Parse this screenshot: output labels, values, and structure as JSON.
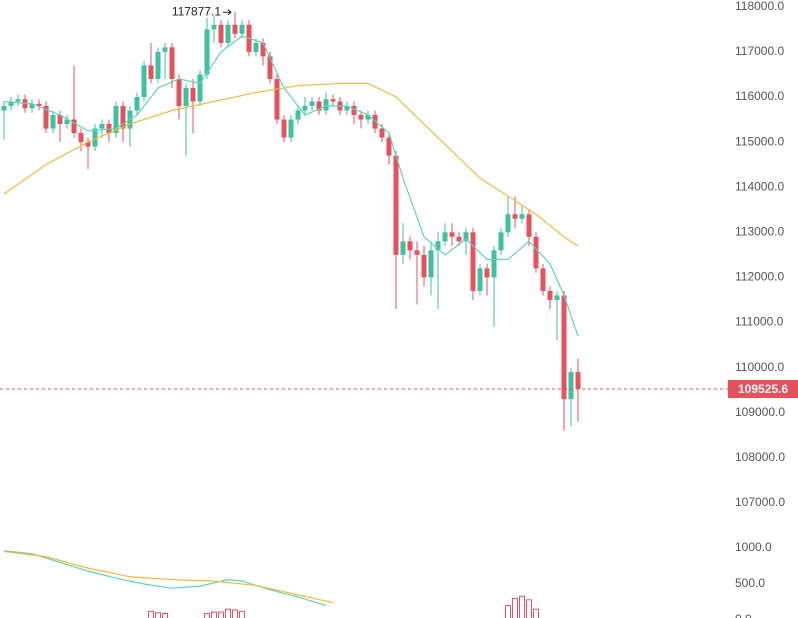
{
  "chart_data": [
    {
      "type": "candlestick",
      "up_color": "#3cc2a0",
      "down_color": "#e8505b",
      "open": [
        115700,
        115800,
        115900,
        115950,
        115750,
        115850,
        115800,
        115300,
        115600,
        115400,
        115500,
        115200,
        115000,
        114900,
        115300,
        115400,
        115200,
        115800,
        115300,
        115700,
        116000,
        116700,
        116400,
        117000,
        117100,
        116400,
        115800,
        116200,
        115900,
        116500,
        117500,
        117600,
        117200,
        117600,
        117400,
        117600,
        117000,
        117200,
        116900,
        116400,
        115500,
        115100,
        115500,
        115700,
        115800,
        115900,
        115700,
        115950,
        115900,
        115700,
        115800,
        115600,
        115500,
        115600,
        115300,
        115100,
        114700,
        112500,
        112800,
        112600,
        112500,
        112000,
        112600,
        112800,
        113000,
        112900,
        112800,
        113000,
        111700,
        112200,
        112000,
        112600,
        113000,
        113400,
        113300,
        113400,
        112900,
        112200,
        111700,
        111500,
        111600,
        109300,
        109900
      ],
      "high": [
        115900,
        116000,
        116050,
        116050,
        115950,
        115950,
        115900,
        115700,
        115700,
        115600,
        116700,
        115300,
        115100,
        115400,
        115500,
        115500,
        115900,
        115900,
        115800,
        116100,
        116800,
        117200,
        117100,
        117200,
        117200,
        116500,
        116300,
        116400,
        116600,
        117750,
        117800,
        117700,
        117700,
        117877.1,
        117700,
        117700,
        117300,
        117300,
        117000,
        116500,
        115600,
        115600,
        115800,
        116000,
        116000,
        116000,
        116100,
        116050,
        116000,
        115900,
        115900,
        115700,
        115700,
        115700,
        115400,
        115200,
        114800,
        113200,
        112900,
        112800,
        112700,
        112800,
        113000,
        113200,
        113200,
        113000,
        113100,
        113100,
        112300,
        112300,
        112700,
        113100,
        113800,
        113800,
        113600,
        113500,
        113000,
        112300,
        111800,
        111700,
        111700,
        110000,
        110200
      ],
      "low": [
        115050,
        115700,
        115800,
        115650,
        115650,
        115700,
        115200,
        115200,
        115000,
        115300,
        115100,
        114800,
        114400,
        114800,
        115100,
        115000,
        115100,
        115000,
        114900,
        115600,
        115900,
        116300,
        116300,
        116400,
        116200,
        115500,
        114700,
        115200,
        115800,
        116400,
        117200,
        117100,
        117100,
        117300,
        117300,
        116900,
        116900,
        116700,
        116300,
        115400,
        115000,
        115000,
        115400,
        115600,
        115700,
        115600,
        115600,
        115800,
        115600,
        115600,
        115400,
        115300,
        115400,
        115200,
        115000,
        114500,
        111300,
        112300,
        112400,
        111400,
        111800,
        111600,
        111300,
        112700,
        112700,
        112700,
        112500,
        111500,
        111600,
        111600,
        110900,
        112500,
        112900,
        113100,
        113200,
        112700,
        112100,
        111600,
        111300,
        110600,
        108600,
        108700,
        108800
      ],
      "close": [
        115800,
        115900,
        115950,
        115750,
        115850,
        115800,
        115300,
        115600,
        115400,
        115500,
        115200,
        115000,
        114900,
        115300,
        115400,
        115200,
        115800,
        115300,
        115700,
        116000,
        116700,
        116400,
        117000,
        117100,
        116400,
        115800,
        116200,
        115900,
        116500,
        117500,
        117600,
        117200,
        117600,
        117400,
        117600,
        117000,
        117200,
        116900,
        116400,
        115500,
        115100,
        115500,
        115700,
        115800,
        115900,
        115700,
        115950,
        115900,
        115700,
        115800,
        115600,
        115500,
        115600,
        115300,
        115100,
        114700,
        112500,
        112800,
        112600,
        112500,
        112000,
        112600,
        112800,
        113000,
        112900,
        112800,
        113000,
        111700,
        112200,
        112000,
        112600,
        113000,
        113400,
        113300,
        113400,
        112900,
        112200,
        111700,
        111500,
        111600,
        109300,
        109900,
        109525.6
      ],
      "lines": [
        {
          "color": "#5fd3bc",
          "x": [
            0,
            4,
            8,
            12,
            16,
            19,
            22,
            25,
            28,
            31,
            34,
            37,
            40,
            43,
            46,
            49,
            52,
            55,
            57,
            60,
            63,
            66,
            69,
            72,
            75,
            78,
            80,
            82
          ],
          "values": [
            115900,
            115850,
            115600,
            115250,
            115300,
            115600,
            116200,
            116400,
            116300,
            117000,
            117350,
            117200,
            116200,
            115600,
            115800,
            115800,
            115600,
            115200,
            114200,
            112900,
            112500,
            112850,
            112400,
            112400,
            112800,
            112300,
            111600,
            110700
          ]
        },
        {
          "color": "#f5b93c",
          "x": [
            0,
            6,
            12,
            18,
            24,
            30,
            36,
            42,
            48,
            52,
            56,
            60,
            64,
            68,
            72,
            76,
            80,
            82
          ],
          "values": [
            113850,
            114500,
            115000,
            115400,
            115700,
            115900,
            116100,
            116250,
            116300,
            116300,
            116000,
            115400,
            114800,
            114200,
            113800,
            113400,
            112900,
            112700
          ]
        }
      ],
      "ylim": [
        106400,
        118150
      ],
      "yticks": [
        {
          "value": 118000,
          "label": "118000.0"
        },
        {
          "value": 117000,
          "label": "117000.0"
        },
        {
          "value": 116000,
          "label": "116000.0"
        },
        {
          "value": 115000,
          "label": "115000.0"
        },
        {
          "value": 114000,
          "label": "114000.0"
        },
        {
          "value": 113000,
          "label": "113000.0"
        },
        {
          "value": 112000,
          "label": "112000.0"
        },
        {
          "value": 111000,
          "label": "111000.0"
        },
        {
          "value": 110000,
          "label": "110000.0"
        },
        {
          "value": 109000,
          "label": "109000.0"
        },
        {
          "value": 108000,
          "label": "108000.0"
        },
        {
          "value": 107000,
          "label": "107000.0"
        }
      ]
    },
    {
      "type": "bar",
      "color": "#e8505b",
      "x": [
        21,
        22,
        23,
        29,
        30,
        31,
        32,
        33,
        34,
        72,
        73,
        74,
        75,
        76
      ],
      "values": [
        120,
        100,
        90,
        90,
        110,
        110,
        150,
        140,
        120,
        200,
        300,
        330,
        280,
        150
      ],
      "lines": [
        {
          "color": "#5fd3bc",
          "x": [
            0,
            4,
            8,
            12,
            16,
            20,
            24,
            28,
            32,
            34,
            38,
            42,
            46
          ],
          "values": [
            960,
            920,
            800,
            680,
            580,
            500,
            440,
            470,
            560,
            540,
            420,
            320,
            200
          ]
        },
        {
          "color": "#f5b93c",
          "x": [
            0,
            6,
            12,
            18,
            24,
            30,
            36,
            42,
            47
          ],
          "values": [
            950,
            880,
            720,
            600,
            560,
            540,
            480,
            350,
            240
          ]
        }
      ],
      "ylim": [
        0,
        1180
      ],
      "yticks": [
        {
          "value": 1000,
          "label": "1000.0"
        },
        {
          "value": 500,
          "label": "500.0"
        },
        {
          "value": 0,
          "label": "0.0"
        }
      ]
    }
  ]
}
